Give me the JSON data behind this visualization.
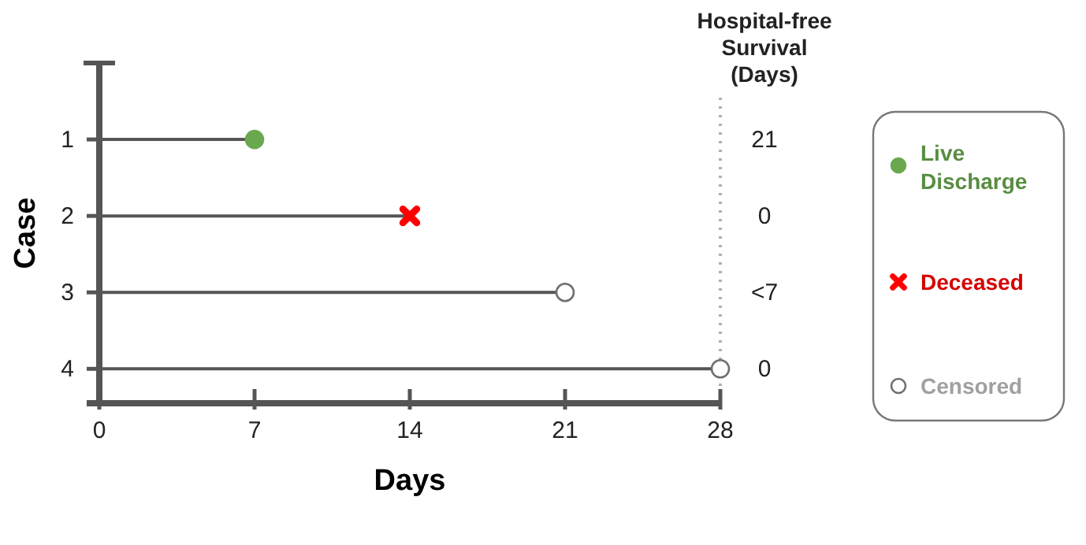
{
  "chart_data": {
    "type": "lollipop",
    "orientation": "horizontal",
    "xlabel": "Days",
    "ylabel": "Case",
    "categories": [
      "1",
      "2",
      "3",
      "4"
    ],
    "series": [
      {
        "name": "Live Discharge",
        "color": "#6aa84f",
        "marker": "circle",
        "values": [
          7,
          null,
          null,
          null
        ]
      },
      {
        "name": "Deceased",
        "color": "#ff0000",
        "marker": "cross",
        "values": [
          null,
          14,
          null,
          null
        ]
      },
      {
        "name": "Censored",
        "color": "#ffffff",
        "marker": "circle",
        "values": [
          null,
          null,
          21,
          28
        ]
      }
    ],
    "xlim": [
      0,
      28
    ],
    "xticks": [
      0,
      7,
      14,
      21,
      28
    ],
    "legend": "right",
    "grid": false,
    "ref_lines": [
      {
        "axis": "x",
        "value": 28,
        "color": "#b0b0b0",
        "line_style": "dotted"
      }
    ],
    "annotations": [
      "Hospital-free Survival (Days)",
      "21",
      "0",
      "<7",
      "0"
    ]
  }
}
